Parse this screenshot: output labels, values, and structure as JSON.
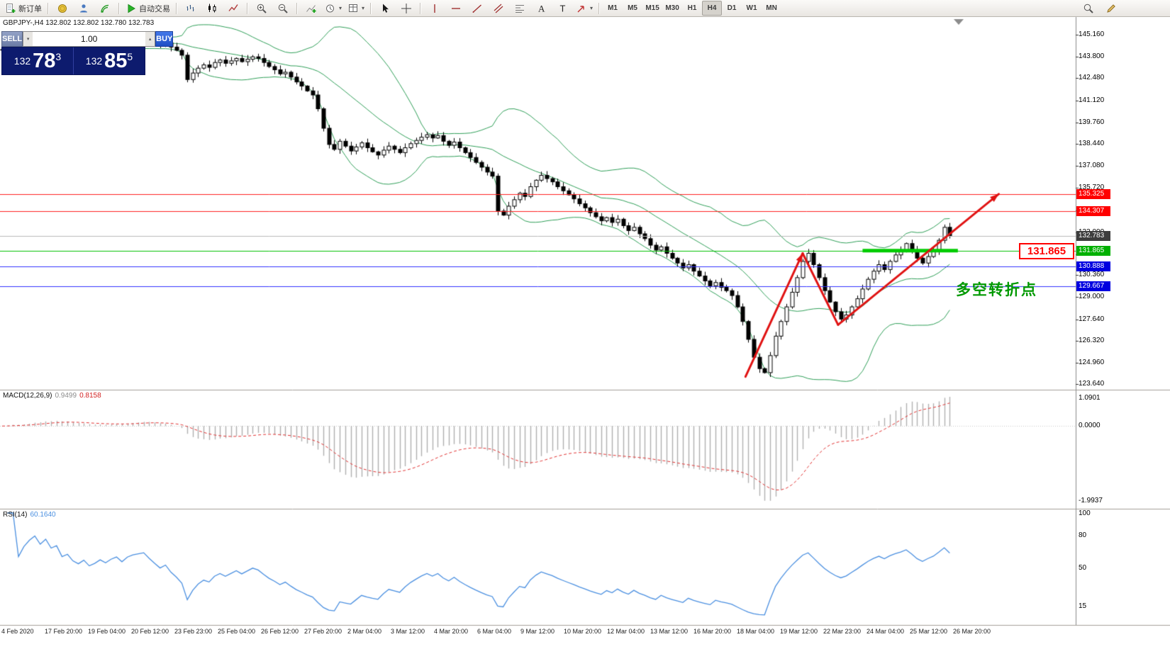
{
  "toolbar": {
    "new_order_label": "新订单",
    "autotrading_label": "自动交易",
    "timeframes": [
      "M1",
      "M5",
      "M15",
      "M30",
      "H1",
      "H4",
      "D1",
      "W1",
      "MN"
    ],
    "active_timeframe": "H4",
    "icon_names": [
      "new-order",
      "terminal",
      "profiles",
      "signals",
      "autotrading",
      "bar-chart",
      "candlestick",
      "line-chart",
      "zoom-in",
      "zoom-out",
      "indicators",
      "periods",
      "templates",
      "cursor",
      "crosshair",
      "vertical-line",
      "horizontal-line",
      "trendline",
      "channel",
      "fibonacci",
      "text",
      "label",
      "arrows",
      "search",
      "edit"
    ]
  },
  "trade_panel": {
    "sell_label": "SELL",
    "buy_label": "BUY",
    "volume": "1.00",
    "sell_price": {
      "prefix": "132",
      "big": "78",
      "sup": "3"
    },
    "buy_price": {
      "prefix": "132",
      "big": "85",
      "sup": "5"
    }
  },
  "chart": {
    "title": "GBPJPY-,H4 132.802 132.802 132.780 132.783"
  },
  "macd": {
    "name": "MACD(12,26,9)",
    "main_value": "0.9499",
    "signal_value": "0.8158",
    "axis_labels": [
      "1.0901",
      "0.0000",
      "-1.9937"
    ],
    "histogram_color": "#b0b0b0",
    "signal_color": "#e03030"
  },
  "rsi": {
    "name": "RSI(14)",
    "value": "60.1640",
    "axis_labels": [
      100,
      80,
      50,
      15
    ],
    "line_color": "#4a8fe0"
  },
  "chart_data": {
    "type": "candlestick",
    "symbol": "GBPJPY-",
    "timeframe": "H4",
    "ylim": [
      123.3,
      146.25
    ],
    "closes": [
      144.25,
      144.4,
      144.55,
      144.35,
      144.5,
      144.65,
      144.8,
      144.7,
      144.9,
      144.75,
      144.85,
      144.6,
      144.7,
      144.5,
      144.4,
      144.55,
      144.35,
      144.45,
      144.6,
      144.5,
      144.65,
      144.75,
      144.6,
      144.8,
      144.9,
      144.95,
      145.0,
      144.85,
      144.7,
      144.55,
      144.65,
      144.4,
      144.2,
      143.9,
      142.4,
      142.8,
      143.1,
      143.3,
      143.15,
      143.45,
      143.6,
      143.4,
      143.55,
      143.7,
      143.5,
      143.65,
      143.8,
      143.7,
      143.45,
      143.2,
      143.0,
      142.75,
      142.85,
      142.55,
      142.25,
      142.0,
      141.7,
      141.45,
      140.6,
      139.4,
      138.4,
      138.1,
      138.6,
      138.3,
      138.0,
      138.25,
      138.5,
      138.2,
      137.95,
      137.75,
      138.05,
      138.3,
      138.1,
      137.9,
      138.2,
      138.45,
      138.65,
      138.85,
      139.0,
      138.8,
      138.95,
      138.6,
      138.35,
      138.55,
      138.2,
      137.9,
      137.6,
      137.3,
      137.0,
      136.7,
      136.45,
      134.3,
      134.05,
      134.6,
      135.0,
      135.4,
      135.2,
      135.8,
      136.2,
      136.5,
      136.3,
      136.1,
      135.8,
      135.55,
      135.3,
      135.05,
      134.75,
      134.5,
      134.2,
      133.95,
      133.7,
      133.9,
      133.6,
      133.8,
      133.4,
      133.1,
      133.3,
      132.9,
      132.6,
      132.2,
      131.9,
      132.1,
      131.7,
      131.4,
      131.1,
      130.8,
      131.0,
      130.6,
      130.3,
      130.0,
      129.7,
      129.9,
      129.6,
      129.4,
      129.1,
      128.4,
      127.5,
      126.4,
      125.3,
      124.6,
      124.35,
      125.4,
      126.6,
      127.5,
      128.4,
      129.3,
      130.2,
      131.2,
      131.7,
      131.0,
      130.2,
      129.4,
      128.7,
      128.1,
      127.65,
      127.9,
      128.4,
      128.9,
      129.5,
      130.1,
      130.6,
      131.0,
      130.7,
      131.2,
      131.6,
      131.9,
      132.3,
      131.9,
      131.4,
      131.1,
      131.5,
      131.85,
      132.5,
      133.3,
      132.783
    ],
    "y_ticks": [
      "145.160",
      "143.800",
      "142.480",
      "141.120",
      "139.760",
      "138.440",
      "137.080",
      "135.720",
      "134.360",
      "133.000",
      "131.640",
      "130.360",
      "129.000",
      "127.640",
      "126.320",
      "124.960",
      "123.640"
    ],
    "x_labels": [
      "4 Feb 2020",
      "17 Feb 20:00",
      "19 Feb 04:00",
      "20 Feb 12:00",
      "23 Feb 23:00",
      "25 Feb 04:00",
      "26 Feb 12:00",
      "27 Feb 20:00",
      "2 Mar 04:00",
      "3 Mar 12:00",
      "4 Mar 20:00",
      "6 Mar 04:00",
      "9 Mar 12:00",
      "10 Mar 20:00",
      "12 Mar 04:00",
      "13 Mar 12:00",
      "16 Mar 20:00",
      "18 Mar 04:00",
      "19 Mar 12:00",
      "22 Mar 23:00",
      "24 Mar 04:00",
      "25 Mar 12:00",
      "26 Mar 20:00"
    ],
    "hlines": [
      {
        "price": 135.325,
        "label": "135.325",
        "line_color": "#ff2020",
        "tag_color": "#ff0000"
      },
      {
        "price": 134.307,
        "label": "134.307",
        "line_color": "#ff2020",
        "tag_color": "#ff0000"
      },
      {
        "price": 132.783,
        "label": "132.783",
        "line_color": "#b8b8b8",
        "tag_color": "#3d3d3d"
      },
      {
        "price": 131.865,
        "label": "131.865",
        "line_color": "#00c000",
        "tag_color": "#00b000"
      },
      {
        "price": 130.888,
        "label": "130.888",
        "line_color": "#3030ff",
        "tag_color": "#0000e0"
      },
      {
        "price": 129.667,
        "label": "129.667",
        "line_color": "#3030ff",
        "tag_color": "#0000e0"
      }
    ],
    "indicators": [
      {
        "name": "Bollinger Bands",
        "period": 20,
        "deviation": 2,
        "color": "#2e9e57"
      },
      {
        "name": "MACD",
        "fast": 12,
        "slow": 26,
        "signal": 9
      },
      {
        "name": "RSI",
        "period": 14
      }
    ],
    "drawings": {
      "support_segment": {
        "from_index": 158,
        "to_index": 175.5,
        "price": 131.865,
        "color": "#00cc00",
        "width": 5
      },
      "trend_arrows": {
        "color": "#e01212",
        "width": 3,
        "segments": [
          [
            136.5,
            124.1,
            147,
            131.7
          ],
          [
            147,
            131.7,
            153.5,
            127.3
          ],
          [
            153.5,
            127.3,
            183,
            135.35
          ]
        ],
        "arrowhead_segments": [
          0,
          2
        ]
      },
      "annotation": {
        "text": "多空转折点",
        "color": "#009900"
      },
      "price_box": {
        "text": "131.865",
        "color": "#ff0000"
      }
    }
  }
}
